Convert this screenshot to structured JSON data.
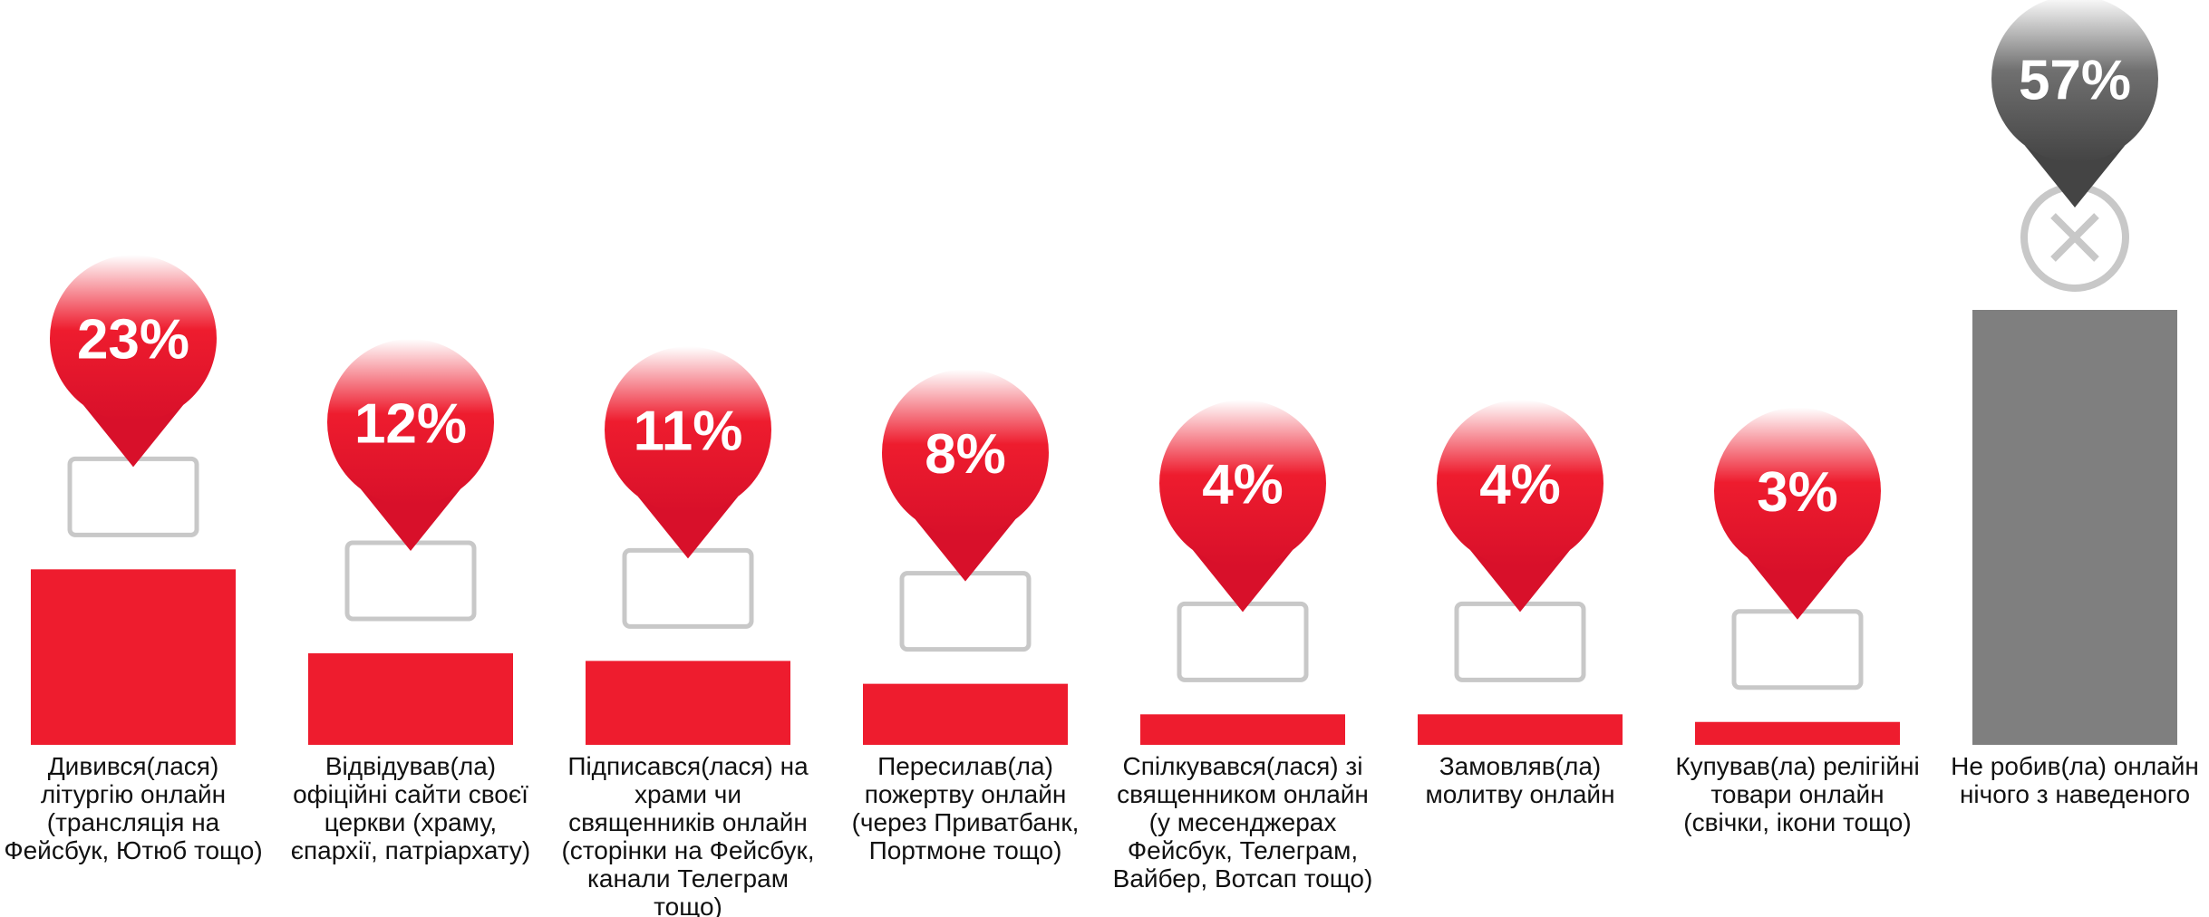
{
  "chart_data": {
    "type": "bar",
    "categories": [
      "Дивився(лася)\nлітургію онлайн\n(трансляція на\nФейсбук, Ютюб тощо)",
      "Відвідував(ла)\nофіційні сайти своєї\nцеркви (храму,\nєпархії, патріархату)",
      "Підписався(лася) на\nхрами чи\nсвященників онлайн\n(сторінки на Фейсбук,\nканали Телеграм\nтощо)",
      "Пересилав(ла)\nпожертву онлайн\n(через Приватбанк,\nПортмоне тощо)",
      "Спілкувався(лася) зі\nсвященником онлайн\n(у месенджерах\nФейсбук, Телеграм,\nВайбер, Вотсап тощо)",
      "Замовляв(ла)\nмолитву онлайн",
      "Купував(ла) релігійні\nтовари онлайн\n(свічки, ікони тощо)",
      "Не робив(ла) онлайн\nнічого з наведеного"
    ],
    "values": [
      23,
      12,
      11,
      8,
      4,
      4,
      3,
      57
    ],
    "value_labels": [
      "23%",
      "12%",
      "11%",
      "8%",
      "4%",
      "4%",
      "3%",
      "57%"
    ],
    "colors": [
      "#ee1c2e",
      "#ee1c2e",
      "#ee1c2e",
      "#ee1c2e",
      "#ee1c2e",
      "#ee1c2e",
      "#ee1c2e",
      "#7f7f7f"
    ]
  }
}
